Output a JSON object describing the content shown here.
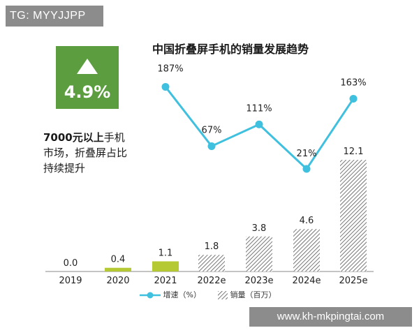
{
  "watermark_top": "TG: MYYJJPP",
  "watermark_bottom": "www.kh-mkpingtai.com",
  "chart_data": {
    "type": "bar+line",
    "title": "中国折叠屏手机的销量发展趋势",
    "categories": [
      "2019",
      "2020",
      "2021",
      "2022e",
      "2023e",
      "2024e",
      "2025e"
    ],
    "series": [
      {
        "name": "销量（百万）",
        "type": "bar",
        "values": [
          0.0,
          0.4,
          1.1,
          1.8,
          3.8,
          4.6,
          12.1
        ],
        "labels": [
          "0.0",
          "0.4",
          "1.1",
          "1.8",
          "3.8",
          "4.6",
          "12.1"
        ],
        "colors": [
          "#b4c934",
          "#b4c934",
          "#b4c934",
          "hatched",
          "hatched",
          "hatched",
          "hatched"
        ]
      },
      {
        "name": "增速（%）",
        "type": "line",
        "x": [
          "2021",
          "2022e",
          "2023e",
          "2024e",
          "2025e"
        ],
        "values": [
          187,
          67,
          111,
          21,
          163
        ],
        "labels": [
          "187%",
          "67%",
          "111%",
          "21%",
          "163%"
        ],
        "color": "#3fc0de"
      }
    ],
    "callout": {
      "value": "4.9%",
      "icon": "up-triangle-icon",
      "color": "#5c9d40",
      "text_bold": "7000元以上",
      "text_rest": "手机",
      "text_line2": "市场，折叠屏占比",
      "text_line3": "持续提升"
    },
    "legend": [
      {
        "label": "增速（%）",
        "marker": "line-dot"
      },
      {
        "label": "销量（百万）",
        "marker": "hatched-box"
      }
    ]
  }
}
